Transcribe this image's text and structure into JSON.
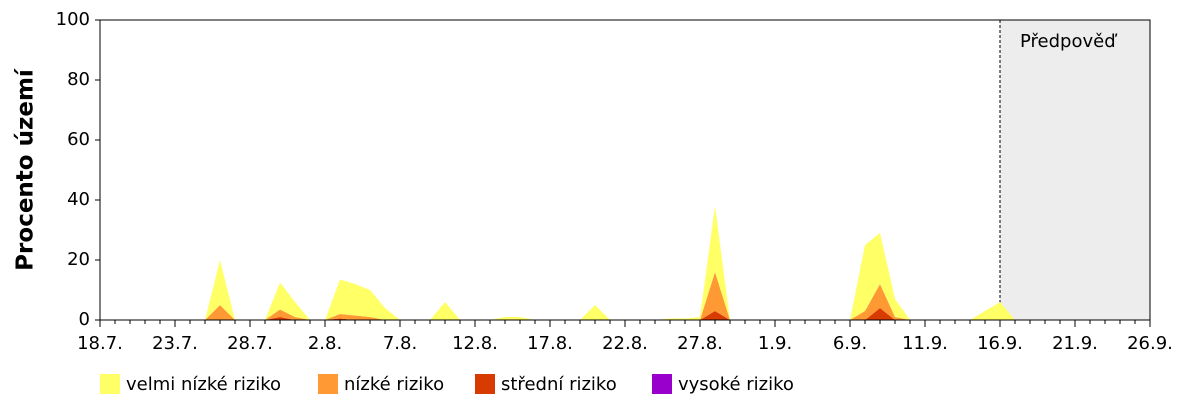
{
  "chart_data": {
    "type": "stacked_area",
    "y_label": "Procento území",
    "categories": [
      "18.7.",
      null,
      null,
      null,
      null,
      "23.7.",
      null,
      null,
      null,
      null,
      "28.7.",
      null,
      null,
      null,
      null,
      "2.8.",
      null,
      null,
      null,
      null,
      "7.8.",
      null,
      null,
      null,
      null,
      "12.8.",
      null,
      null,
      null,
      null,
      "17.8.",
      null,
      null,
      null,
      null,
      "22.8.",
      null,
      null,
      null,
      null,
      "27.8.",
      null,
      null,
      null,
      null,
      "1.9.",
      null,
      null,
      null,
      null,
      "6.9.",
      null,
      null,
      null,
      null,
      "11.9.",
      null,
      null,
      null,
      null,
      "16.9.",
      null,
      null,
      null,
      null,
      "21.9.",
      null,
      null,
      null,
      null,
      "26.9."
    ],
    "forecast_start": "16.9.",
    "forecast_label": "Předpověď",
    "ylim": [
      0,
      100
    ],
    "yticks": [
      0,
      20,
      40,
      60,
      80,
      100
    ],
    "series": [
      {
        "name": "vysoké riziko",
        "color": "#9900cc",
        "values": [
          0,
          0,
          0,
          0,
          0,
          0,
          0,
          0,
          0,
          0,
          0,
          0,
          0,
          0,
          0,
          0,
          0,
          0,
          0,
          0,
          0,
          0,
          0,
          0,
          0,
          0,
          0,
          0,
          0,
          0,
          0,
          0,
          0,
          0,
          0,
          0,
          0,
          0,
          0,
          0,
          0,
          0,
          0,
          0,
          0,
          0,
          0,
          0,
          0,
          0,
          0,
          0,
          0,
          0,
          0,
          0,
          0,
          0,
          0,
          0,
          0,
          0,
          null,
          null,
          null,
          null,
          null,
          null,
          null,
          null,
          null
        ]
      },
      {
        "name": "střední riziko",
        "color": "#d83b01",
        "values": [
          0,
          0,
          0,
          0,
          0,
          0,
          0,
          0,
          0,
          0,
          0,
          0,
          1,
          0,
          0,
          0,
          0.5,
          0,
          0,
          0,
          0,
          0,
          0,
          0,
          0,
          0,
          0,
          0,
          0,
          0,
          0,
          0,
          0,
          0,
          0,
          0,
          0,
          0,
          0,
          0,
          0,
          3,
          0,
          0,
          0,
          0,
          0,
          0,
          0,
          0,
          0,
          0,
          4,
          0,
          0,
          0,
          0,
          0,
          0,
          0,
          0,
          0,
          null,
          null,
          null,
          null,
          null,
          null,
          null,
          null,
          null
        ]
      },
      {
        "name": "nízké riziko",
        "color": "#ff9933",
        "values": [
          0,
          0,
          0,
          0,
          0,
          0,
          0,
          0,
          5,
          0,
          0,
          0,
          2.5,
          1,
          0,
          0,
          1.5,
          1.5,
          1,
          0,
          0,
          0,
          0,
          0,
          0,
          0,
          0,
          0,
          0,
          0,
          0,
          0,
          0,
          0,
          0,
          0,
          0,
          0,
          0,
          0,
          0,
          13,
          0,
          0,
          0,
          0,
          0,
          0,
          0,
          0,
          0,
          3,
          8,
          1,
          0,
          0,
          0,
          0,
          0,
          0,
          0,
          0,
          null,
          null,
          null,
          null,
          null,
          null,
          null,
          null,
          null
        ]
      },
      {
        "name": "velmi nízké riziko",
        "color": "#ffff66",
        "values": [
          0,
          0,
          0,
          0,
          0,
          0,
          0,
          0,
          15,
          0,
          0,
          0,
          9,
          5,
          0,
          0,
          11.5,
          10.5,
          9,
          4,
          0,
          0,
          0,
          6,
          0,
          0,
          0,
          1,
          1,
          0,
          0,
          0,
          0,
          5,
          0,
          0,
          0,
          0,
          0.5,
          0.5,
          1,
          22,
          0,
          0,
          0,
          0,
          0,
          0,
          0,
          0,
          0,
          22,
          17,
          6,
          0,
          0,
          0,
          0,
          0,
          3,
          6,
          0,
          null,
          null,
          null,
          null,
          null,
          null,
          null,
          null,
          null
        ]
      }
    ]
  }
}
